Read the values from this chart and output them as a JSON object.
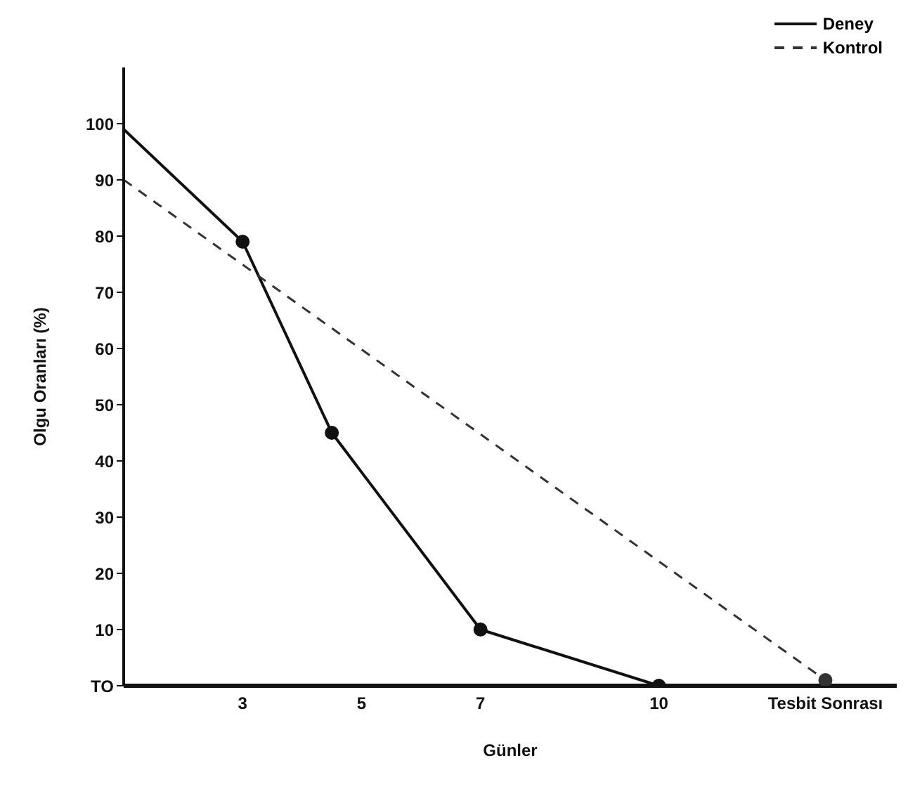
{
  "chart_data": {
    "type": "line",
    "xlabel": "Günler",
    "ylabel": "Olgu Oranları (%)",
    "xlim": [
      1,
      14
    ],
    "xticks": [
      3,
      5,
      7,
      10,
      {
        "value": 12.8,
        "label": "Tesbit Sonrası"
      }
    ],
    "ylim": [
      0,
      110
    ],
    "yticks": [
      {
        "value": 0,
        "label": "TO"
      },
      10,
      20,
      30,
      40,
      50,
      60,
      70,
      80,
      90,
      100
    ],
    "grid": false,
    "legend": "top right",
    "marker": "circle",
    "series": [
      {
        "name": "Deney",
        "color": "#111111",
        "line_style": "solid",
        "x": [
          1,
          3,
          4.5,
          7,
          10
        ],
        "values": [
          99,
          79,
          45,
          10,
          0
        ]
      },
      {
        "name": "Kontrol",
        "color": "#333333",
        "line_style": "dashed",
        "x": [
          1,
          12.8
        ],
        "values": [
          90,
          1
        ]
      }
    ]
  }
}
